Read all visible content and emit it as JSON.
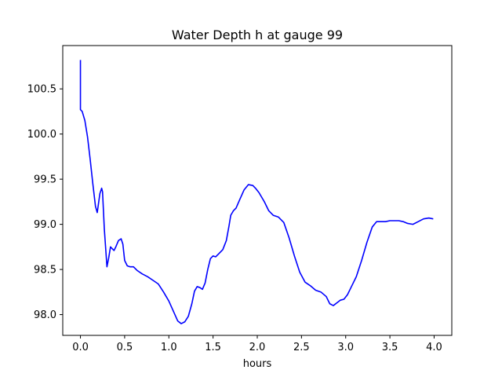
{
  "chart_data": {
    "type": "line",
    "title": "Water Depth h at gauge 99",
    "xlabel": "hours",
    "ylabel": "",
    "xlim": [
      -0.2,
      4.2
    ],
    "ylim": [
      97.77,
      100.98
    ],
    "xticks": [
      0.0,
      0.5,
      1.0,
      1.5,
      2.0,
      2.5,
      3.0,
      3.5,
      4.0
    ],
    "xtick_labels": [
      "0.0",
      "0.5",
      "1.0",
      "1.5",
      "2.0",
      "2.5",
      "3.0",
      "3.5",
      "4.0"
    ],
    "yticks": [
      98.0,
      98.5,
      99.0,
      99.5,
      100.0,
      100.5
    ],
    "ytick_labels": [
      "98.0",
      "98.5",
      "99.0",
      "99.5",
      "100.0",
      "100.5"
    ],
    "grid": false,
    "series": [
      {
        "color": "#0000ff",
        "x": [
          0.0,
          0.0,
          0.0,
          0.02,
          0.05,
          0.08,
          0.11,
          0.14,
          0.17,
          0.19,
          0.2,
          0.22,
          0.24,
          0.25,
          0.27,
          0.3,
          0.32,
          0.34,
          0.36,
          0.38,
          0.4,
          0.43,
          0.46,
          0.48,
          0.5,
          0.53,
          0.56,
          0.6,
          0.64,
          0.7,
          0.76,
          0.82,
          0.88,
          0.94,
          1.0,
          1.05,
          1.1,
          1.14,
          1.18,
          1.22,
          1.26,
          1.29,
          1.32,
          1.35,
          1.38,
          1.41,
          1.44,
          1.47,
          1.5,
          1.53,
          1.57,
          1.61,
          1.65,
          1.68,
          1.7,
          1.73,
          1.76,
          1.8,
          1.85,
          1.9,
          1.95,
          1.98,
          2.02,
          2.08,
          2.13,
          2.18,
          2.24,
          2.3,
          2.36,
          2.42,
          2.48,
          2.54,
          2.6,
          2.66,
          2.72,
          2.78,
          2.82,
          2.86,
          2.9,
          2.94,
          2.98,
          3.02,
          3.06,
          3.12,
          3.18,
          3.24,
          3.3,
          3.35,
          3.4,
          3.45,
          3.5,
          3.55,
          3.6,
          3.65,
          3.7,
          3.76,
          3.82,
          3.88,
          3.94,
          3.99
        ],
        "y": [
          100.82,
          100.27,
          100.27,
          100.25,
          100.15,
          99.97,
          99.72,
          99.45,
          99.2,
          99.13,
          99.2,
          99.34,
          99.4,
          99.36,
          98.95,
          98.53,
          98.63,
          98.75,
          98.73,
          98.71,
          98.75,
          98.82,
          98.84,
          98.78,
          98.6,
          98.54,
          98.53,
          98.53,
          98.49,
          98.45,
          98.42,
          98.38,
          98.34,
          98.25,
          98.15,
          98.04,
          97.93,
          97.9,
          97.92,
          97.98,
          98.12,
          98.26,
          98.31,
          98.3,
          98.28,
          98.35,
          98.5,
          98.62,
          98.65,
          98.64,
          98.68,
          98.72,
          98.82,
          98.98,
          99.1,
          99.15,
          99.18,
          99.27,
          99.38,
          99.44,
          99.43,
          99.4,
          99.35,
          99.25,
          99.15,
          99.1,
          99.08,
          99.02,
          98.85,
          98.65,
          98.47,
          98.36,
          98.32,
          98.27,
          98.25,
          98.2,
          98.12,
          98.1,
          98.13,
          98.16,
          98.17,
          98.22,
          98.3,
          98.42,
          98.6,
          98.8,
          98.97,
          99.03,
          99.03,
          99.03,
          99.04,
          99.04,
          99.04,
          99.03,
          99.01,
          99.0,
          99.03,
          99.06,
          99.07,
          99.06
        ]
      }
    ]
  }
}
